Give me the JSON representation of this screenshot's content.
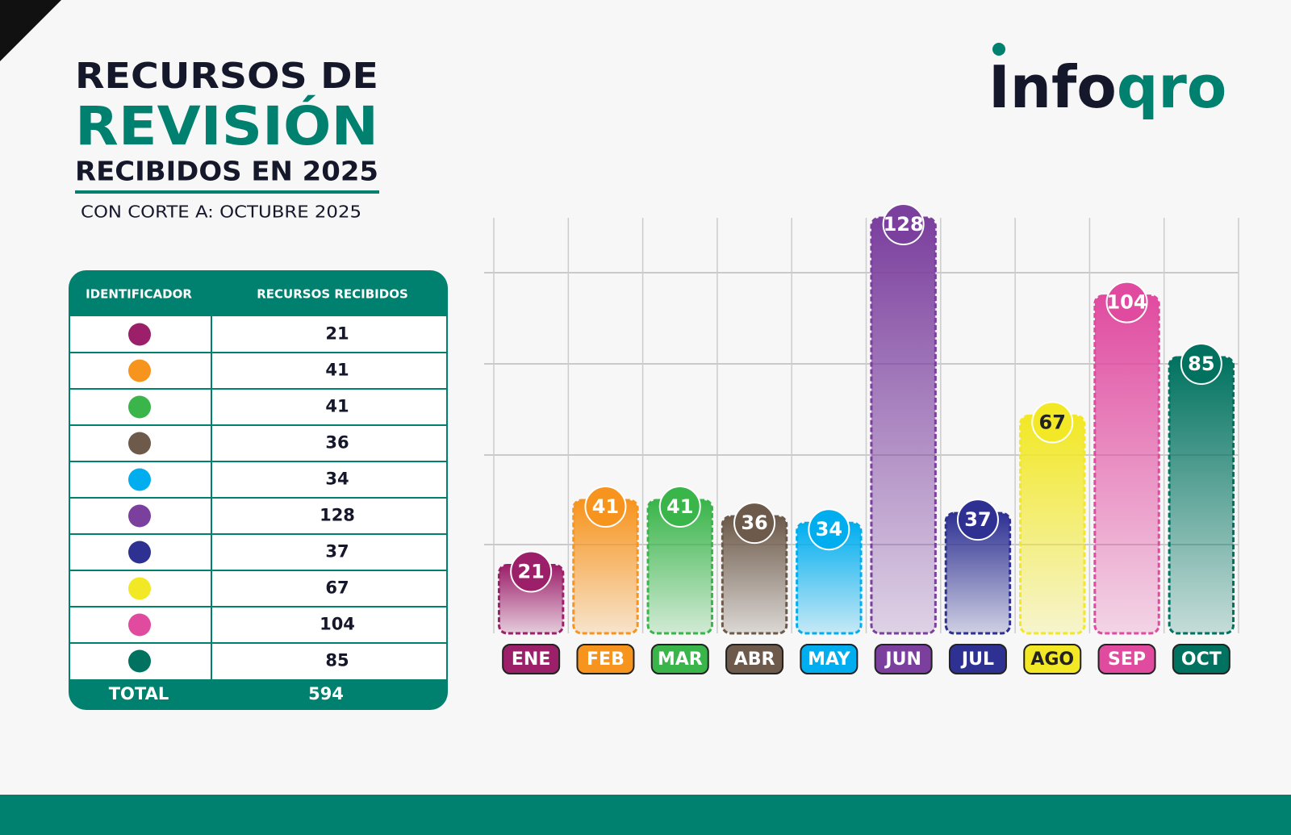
{
  "header": {
    "line1": "RECURSOS DE",
    "line2": "REVISIÓN",
    "line3": "RECIBIDOS EN 2025",
    "subtitle": "CON CORTE A: OCTUBRE 2025"
  },
  "logo": {
    "part1": "Info",
    "part2": "qro"
  },
  "table": {
    "columns": [
      "IDENTIFICADOR",
      "RECURSOS RECIBIDOS"
    ],
    "total_label": "TOTAL",
    "total": 594
  },
  "chart_data": {
    "type": "bar",
    "categories": [
      "ENE",
      "FEB",
      "MAR",
      "ABR",
      "MAY",
      "JUN",
      "JUL",
      "AGO",
      "SEP",
      "OCT"
    ],
    "values": [
      21,
      41,
      41,
      36,
      34,
      128,
      37,
      67,
      104,
      85
    ],
    "colors": [
      "#9c1f6a",
      "#f7941d",
      "#39b54a",
      "#6d5a4a",
      "#00aeef",
      "#7b3f9e",
      "#2e3192",
      "#f2e825",
      "#e04ba0",
      "#00725f"
    ]
  }
}
